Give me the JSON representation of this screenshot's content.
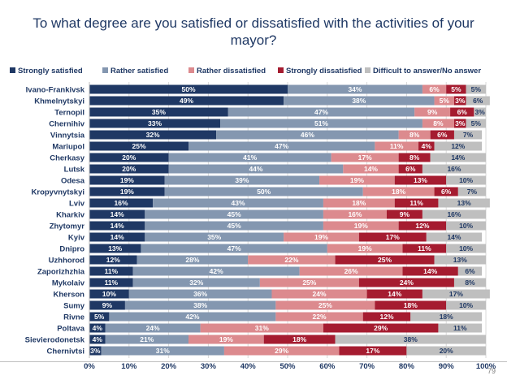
{
  "chart_data": {
    "type": "bar",
    "orientation": "horizontal",
    "stacked": true,
    "title": "To what degree are you satisfied or dissatisfied with the activities of your mayor?",
    "categories": [
      "Ivano-Frankivsk",
      "Khmelnytskyi",
      "Ternopil",
      "Chernihiv",
      "Vinnytsia",
      "Mariupol",
      "Cherkasy",
      "Lutsk",
      "Odesa",
      "Kropyvnytskyi",
      "Lviv",
      "Kharkiv",
      "Zhytomyr",
      "Kyiv",
      "Dnipro",
      "Uzhhorod",
      "Zaporizhzhia",
      "Mykolaiv",
      "Kherson",
      "Sumy",
      "Rivne",
      "Poltava",
      "Sievierodonetsk",
      "Chernivtsi"
    ],
    "series": [
      {
        "name": "Strongly satisfied",
        "color": "#1f3864",
        "values": [
          50,
          49,
          35,
          33,
          32,
          25,
          20,
          20,
          19,
          19,
          16,
          14,
          14,
          14,
          13,
          12,
          11,
          11,
          10,
          9,
          5,
          4,
          4,
          3
        ]
      },
      {
        "name": "Rather satisfied",
        "color": "#8497b0",
        "values": [
          34,
          38,
          47,
          51,
          46,
          47,
          41,
          44,
          39,
          50,
          43,
          45,
          45,
          35,
          47,
          28,
          42,
          32,
          36,
          38,
          42,
          24,
          21,
          31
        ]
      },
      {
        "name": "Rather dissatisfied",
        "color": "#dc8a8e",
        "values": [
          6,
          5,
          9,
          8,
          8,
          11,
          17,
          14,
          19,
          18,
          18,
          16,
          19,
          19,
          19,
          22,
          26,
          25,
          24,
          25,
          22,
          31,
          19,
          29
        ]
      },
      {
        "name": "Strongly dissatisfied",
        "color": "#a51c30",
        "values": [
          5,
          3,
          6,
          3,
          6,
          4,
          8,
          6,
          13,
          6,
          11,
          9,
          12,
          17,
          11,
          25,
          14,
          24,
          14,
          18,
          12,
          29,
          18,
          17
        ]
      },
      {
        "name": "Difficult to answer/No answer",
        "color": "#bfbfbf",
        "values": [
          5,
          6,
          3,
          5,
          7,
          12,
          14,
          16,
          10,
          7,
          13,
          16,
          10,
          14,
          10,
          13,
          6,
          8,
          17,
          10,
          18,
          11,
          38,
          20
        ]
      }
    ],
    "xlim": [
      0,
      100
    ],
    "x_ticks": [
      "0%",
      "10%",
      "20%",
      "30%",
      "40%",
      "50%",
      "60%",
      "70%",
      "80%",
      "90%",
      "100%"
    ],
    "legend_position": "top",
    "grid": true
  },
  "page_number": "79"
}
